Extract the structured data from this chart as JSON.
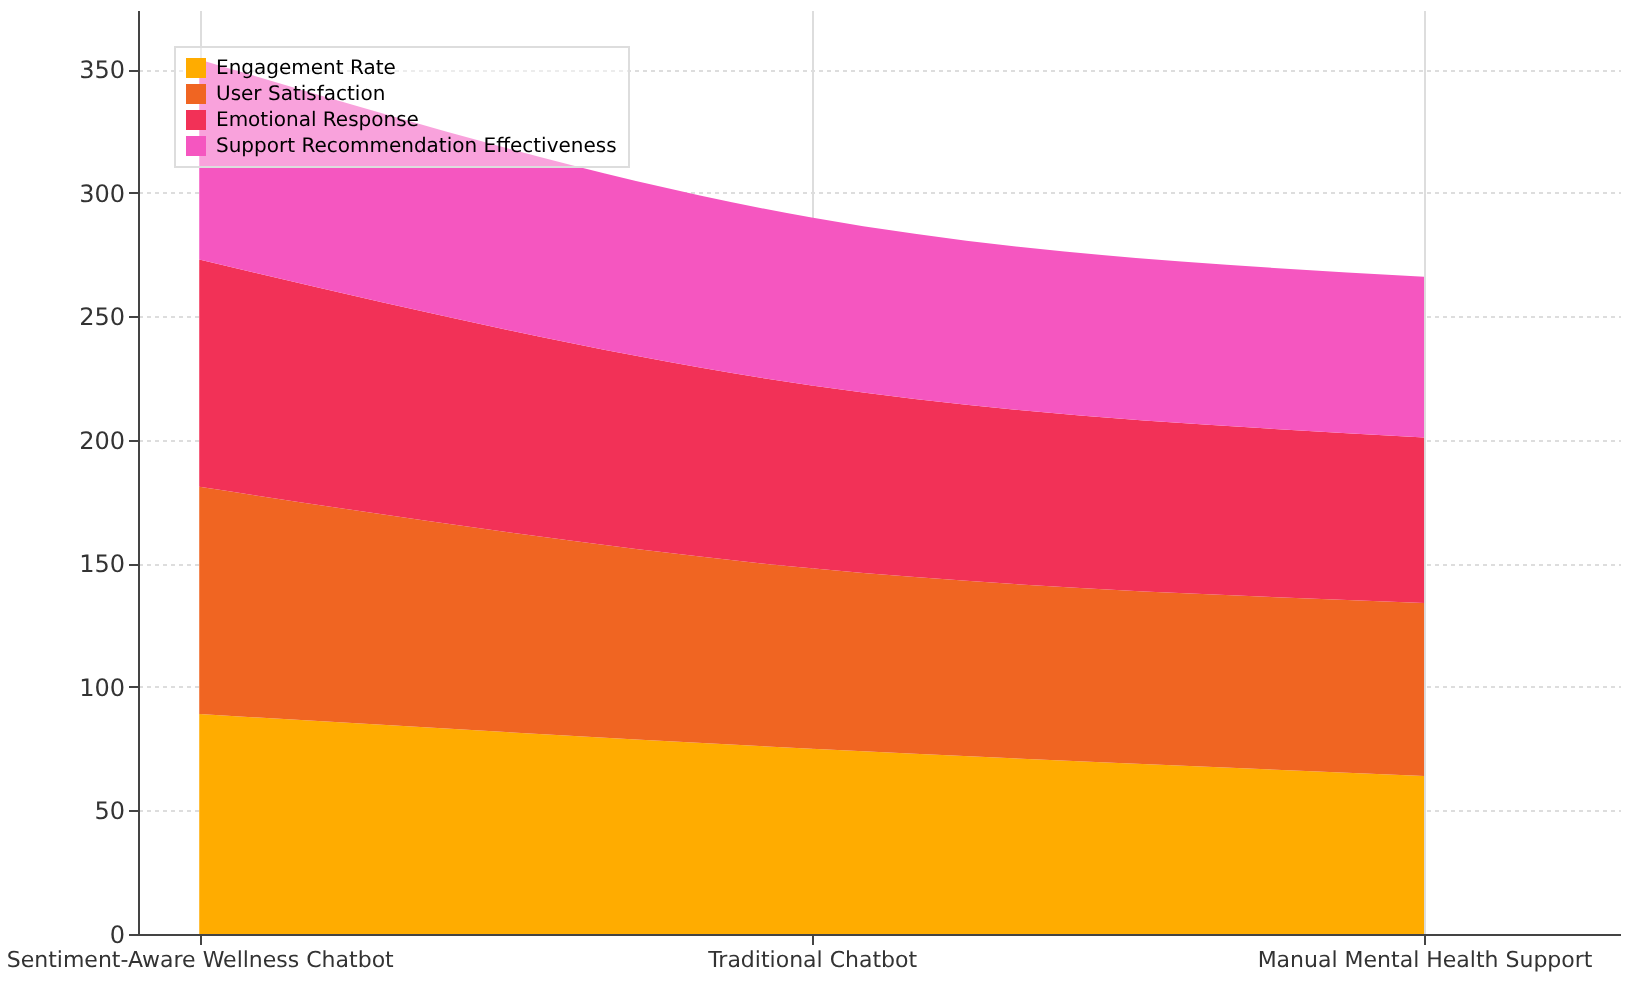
{
  "chart_data": {
    "type": "area",
    "stacked": true,
    "categories": [
      "Sentiment-Aware Wellness Chatbot",
      "Traditional Chatbot",
      "Manual Mental Health Support"
    ],
    "series": [
      {
        "name": "Engagement Rate",
        "color": "#ffac00",
        "values": [
          89,
          75,
          64
        ]
      },
      {
        "name": "User Satisfaction",
        "color": "#f06522",
        "values": [
          92,
          73,
          70
        ]
      },
      {
        "name": "Emotional Response",
        "color": "#f23157",
        "values": [
          92,
          74,
          67
        ]
      },
      {
        "name": "Support Recommendation Effectiveness",
        "color": "#f556c0",
        "values": [
          81,
          68,
          65
        ]
      }
    ],
    "ylim": [
      0,
      374
    ],
    "yticks": [
      0,
      50,
      100,
      150,
      200,
      250,
      300,
      350
    ],
    "grid": true,
    "legend": "top left"
  }
}
